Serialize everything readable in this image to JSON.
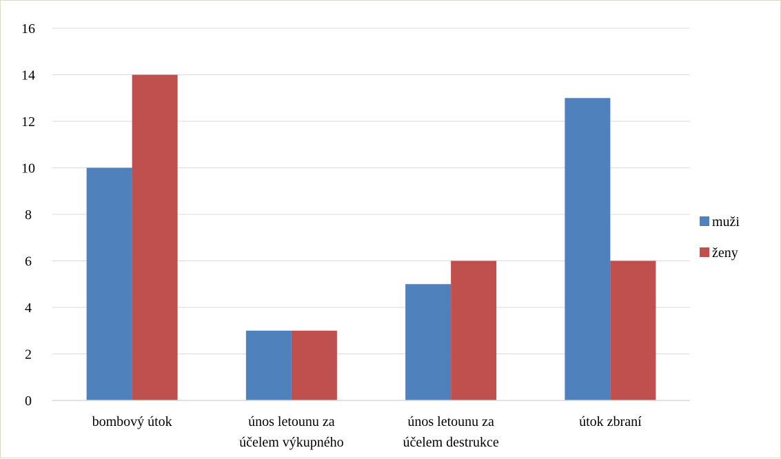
{
  "chart_data": {
    "type": "bar",
    "categories": [
      [
        "bombový útok"
      ],
      [
        "únos letounu za",
        "účelem výkupného"
      ],
      [
        "únos letounu za",
        "účelem destrukce"
      ],
      [
        "útok zbraní"
      ]
    ],
    "series": [
      {
        "name": "muži",
        "color": "#4f81bd",
        "values": [
          10,
          3,
          5,
          13
        ]
      },
      {
        "name": "ženy",
        "color": "#c0504d",
        "values": [
          14,
          3,
          6,
          6
        ]
      }
    ],
    "ylim": [
      0,
      16
    ],
    "yticks": [
      0,
      2,
      4,
      6,
      8,
      10,
      12,
      14,
      16
    ],
    "grid": true,
    "legend": "right",
    "title": "",
    "xlabel": "",
    "ylabel": ""
  }
}
